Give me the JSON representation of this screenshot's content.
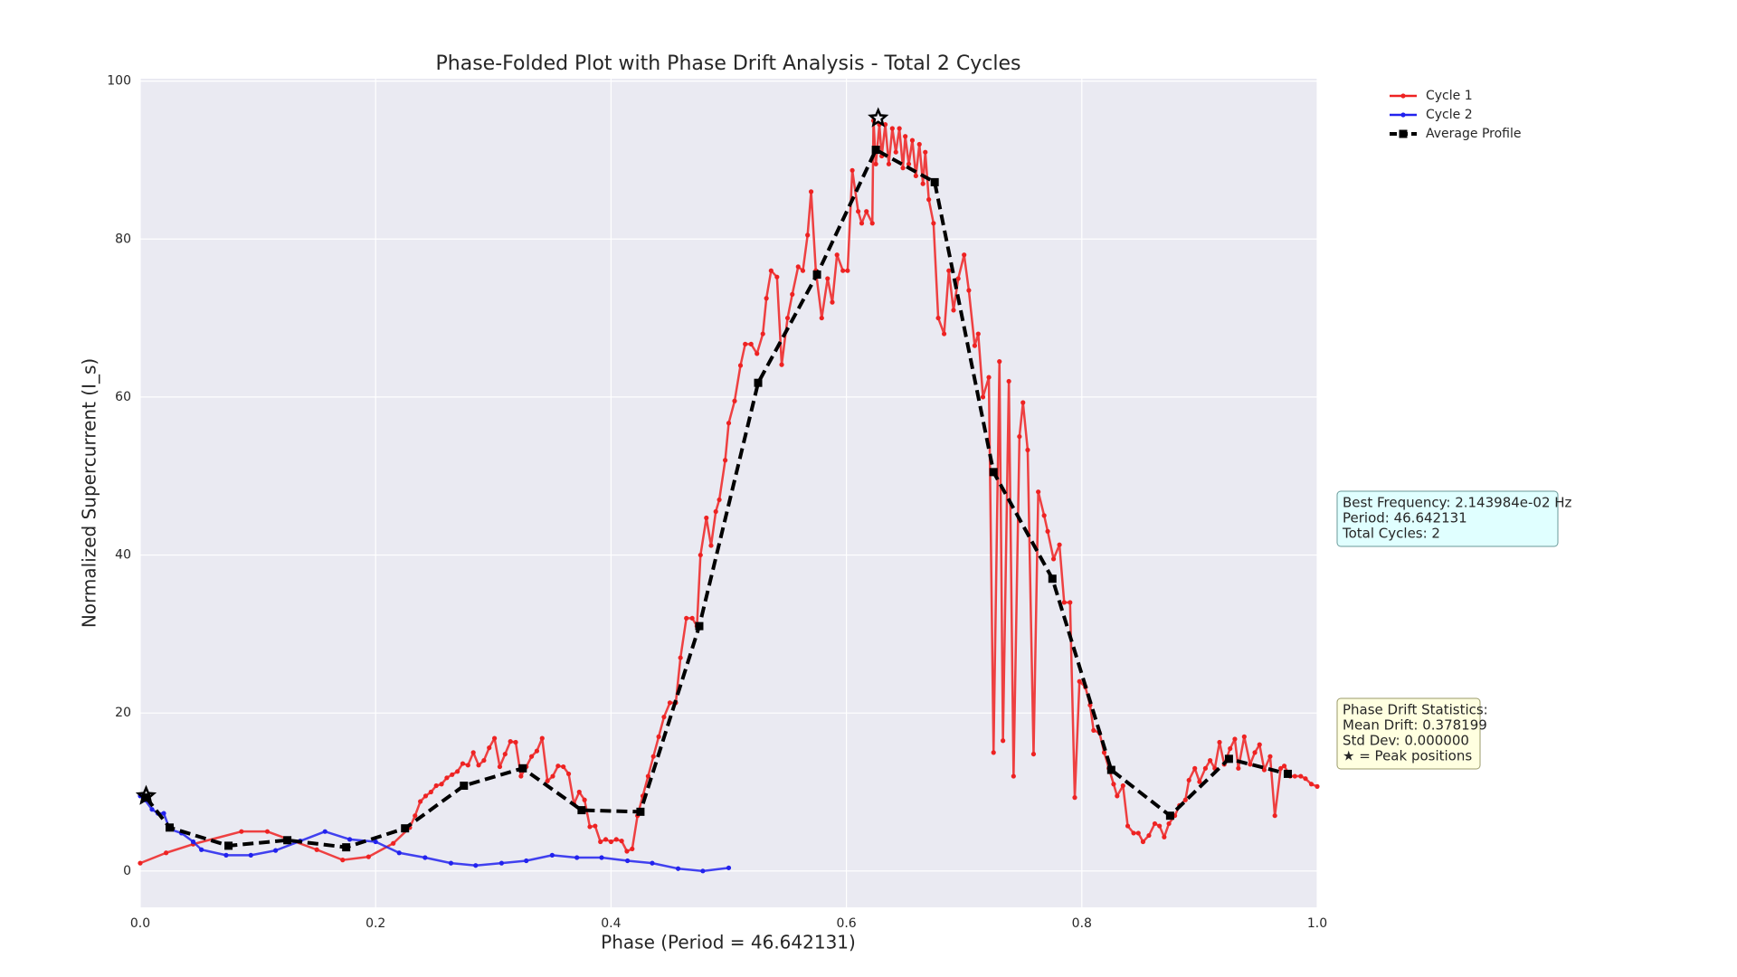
{
  "chart_data": {
    "type": "line",
    "title": "Phase-Folded Plot with Phase Drift Analysis - Total 2 Cycles",
    "xlabel": "Phase (Period = 46.642131)",
    "ylabel": "Normalized Supercurrent (I_s)",
    "xlim": [
      0,
      1
    ],
    "ylim": [
      -4.6,
      100.3
    ],
    "xticks": [
      {
        "value": 0,
        "label": "0.0"
      },
      0.2,
      0.4,
      0.6,
      0.8,
      {
        "value": 1,
        "label": "1.0"
      }
    ],
    "yticks": [
      0,
      20,
      40,
      60,
      80,
      100
    ],
    "grid": true,
    "legend": "upper right outside",
    "series": [
      {
        "name": "Cycle 1",
        "color": "#ee2222",
        "linestyle": "solid",
        "marker": "circle",
        "x": [
          0,
          0.022,
          0.045,
          0.086,
          0.108,
          0.15,
          0.172,
          0.194,
          0.215,
          0.229,
          0.2335,
          0.238,
          0.2425,
          0.247,
          0.2515,
          0.256,
          0.2605,
          0.265,
          0.2695,
          0.274,
          0.2785,
          0.283,
          0.2875,
          0.292,
          0.2965,
          0.301,
          0.3055,
          0.31,
          0.3145,
          0.319,
          0.3235,
          0.328,
          0.3325,
          0.337,
          0.3415,
          0.346,
          0.3505,
          0.355,
          0.3595,
          0.364,
          0.3685,
          0.373,
          0.3775,
          0.382,
          0.3865,
          0.391,
          0.3955,
          0.4,
          0.4045,
          0.409,
          0.4135,
          0.418,
          0.4225,
          0.427,
          0.4315,
          0.436,
          0.4405,
          0.445,
          0.45,
          0.455,
          0.459,
          0.464,
          0.469,
          0.473,
          0.476,
          0.481,
          0.485,
          0.489,
          0.492,
          0.497,
          0.5,
          0.505,
          0.51,
          0.514,
          0.519,
          0.524,
          0.529,
          0.532,
          0.536,
          0.541,
          0.545,
          0.55,
          0.554,
          0.559,
          0.563,
          0.567,
          0.57,
          0.574,
          0.579,
          0.584,
          0.588,
          0.592,
          0.597,
          0.601,
          0.605,
          0.61,
          0.613,
          0.617,
          0.622,
          0.623,
          0.625,
          0.628,
          0.63,
          0.633,
          0.636,
          0.639,
          0.642,
          0.645,
          0.648,
          0.65,
          0.653,
          0.656,
          0.659,
          0.662,
          0.665,
          0.667,
          0.67,
          0.674,
          0.678,
          0.683,
          0.687,
          0.691,
          0.695,
          0.7,
          0.704,
          0.709,
          0.712,
          0.716,
          0.721,
          0.725,
          0.73,
          0.733,
          0.738,
          0.742,
          0.747,
          0.75,
          0.754,
          0.759,
          0.763,
          0.768,
          0.771,
          0.776,
          0.781,
          0.785,
          0.79,
          0.794,
          0.798,
          0.803,
          0.807,
          0.81,
          0.815,
          0.819,
          0.823,
          0.827,
          0.83,
          0.835,
          0.839,
          0.844,
          0.848,
          0.852,
          0.857,
          0.862,
          0.866,
          0.87,
          0.874,
          0.879,
          0.883,
          0.888,
          0.891,
          0.896,
          0.9,
          0.905,
          0.909,
          0.913,
          0.917,
          0.921,
          0.926,
          0.93,
          0.933,
          0.938,
          0.943,
          0.947,
          0.951,
          0.955,
          0.96,
          0.964,
          0.969,
          0.972,
          0.977,
          0.981,
          0.986,
          0.99,
          0.995,
          1.0
        ],
        "values": [
          1.0,
          2.3,
          3.4,
          5.0,
          5.0,
          2.7,
          1.4,
          1.8,
          3.5,
          5.5,
          7.0,
          8.8,
          9.5,
          10.0,
          10.8,
          11.0,
          11.8,
          12.2,
          12.6,
          13.6,
          13.4,
          15.0,
          13.4,
          14.0,
          15.6,
          16.8,
          13.2,
          14.8,
          16.4,
          16.3,
          12.0,
          13.2,
          14.5,
          15.2,
          16.8,
          11.4,
          12.0,
          13.3,
          13.2,
          12.3,
          8.5,
          10.0,
          9.0,
          5.6,
          5.7,
          3.7,
          4.0,
          3.7,
          4.0,
          3.8,
          2.5,
          2.8,
          7.0,
          9.5,
          12.0,
          14.5,
          17.0,
          19.5,
          21.3,
          21.3,
          27,
          32,
          32,
          31,
          40,
          44.7,
          41.2,
          45.5,
          47,
          52,
          56.7,
          59.5,
          64,
          66.7,
          66.7,
          65.5,
          68,
          72.5,
          76,
          75.2,
          64.1,
          70,
          73,
          76.5,
          76,
          80.5,
          86,
          76,
          70,
          75,
          72,
          78,
          76,
          76,
          88.7,
          83.5,
          82,
          83.5,
          82,
          95,
          89.5,
          94.5,
          90.5,
          94.5,
          89.5,
          94,
          91,
          94,
          89,
          93,
          89.5,
          92.5,
          88,
          92,
          87,
          91,
          85,
          82,
          70,
          68,
          76,
          71,
          75,
          78,
          73.5,
          66.5,
          68,
          60,
          62.5,
          15,
          64.5,
          16.5,
          62,
          12,
          55,
          59.3,
          53.3,
          14.8,
          48,
          45,
          43,
          39.5,
          41.3,
          34,
          34,
          9.3,
          24,
          23.3,
          21,
          17.8,
          17.5,
          15,
          13,
          11,
          9.5,
          10.8,
          5.7,
          4.8,
          4.8,
          3.7,
          4.5,
          6,
          5.7,
          4.3,
          6,
          7,
          8.3,
          9,
          11.5,
          13,
          11.3,
          13,
          14,
          13,
          16.3,
          13.5,
          15.5,
          16.7,
          13,
          17,
          13.5,
          15,
          16,
          12.8,
          14.5,
          7,
          13,
          13.3,
          12,
          12,
          12,
          11.7,
          11,
          10.7
        ]
      },
      {
        "name": "Cycle 2",
        "color": "#2222ee",
        "linestyle": "solid",
        "marker": "circle",
        "x": [
          0,
          0.004,
          0.01,
          0.015,
          0.02,
          0.025,
          0.035,
          0.045,
          0.052,
          0.073,
          0.094,
          0.115,
          0.136,
          0.157,
          0.178,
          0.2,
          0.22,
          0.242,
          0.264,
          0.285,
          0.307,
          0.328,
          0.35,
          0.371,
          0.392,
          0.414,
          0.435,
          0.457,
          0.478,
          0.5
        ],
        "values": [
          9.5,
          9.0,
          7.8,
          7.3,
          7.3,
          5.3,
          4.8,
          3.7,
          2.7,
          2.0,
          2.0,
          2.6,
          3.8,
          5.0,
          4.0,
          3.7,
          2.3,
          1.7,
          1.0,
          0.7,
          1.0,
          1.3,
          2.0,
          1.7,
          1.7,
          1.3,
          1.0,
          0.3,
          0.0,
          0.4
        ]
      },
      {
        "name": "Average Profile",
        "color": "#000000",
        "linestyle": "dashed",
        "marker": "square",
        "x": [
          0.005,
          0.025,
          0.075,
          0.125,
          0.175,
          0.225,
          0.275,
          0.325,
          0.375,
          0.425,
          0.475,
          0.525,
          0.575,
          0.625,
          0.675,
          0.725,
          0.775,
          0.825,
          0.875,
          0.925,
          0.975
        ],
        "values": [
          9.3,
          5.5,
          3.2,
          3.9,
          3.0,
          5.4,
          10.8,
          13.0,
          7.7,
          7.5,
          31,
          61.8,
          75.5,
          91.3,
          87.2,
          50.5,
          37,
          12.8,
          7.0,
          14.2,
          12.3
        ]
      }
    ],
    "peaks": {
      "marker": "star",
      "color": "#000000",
      "x": [
        0.005,
        0.627
      ],
      "values": [
        9.5,
        95.3
      ]
    },
    "annotations": [
      {
        "lines": [
          "Best Frequency: 2.143984e-02 Hz",
          "Period: 46.642131",
          "Total Cycles: 2"
        ],
        "background": "#e0ffff",
        "border": "#6a9a9a"
      },
      {
        "lines": [
          "Phase Drift Statistics:",
          "Mean Drift: 0.378199",
          "Std Dev: 0.000000",
          "★ = Peak positions"
        ],
        "background": "#ffffe0",
        "border": "#9a9a6a"
      }
    ]
  }
}
